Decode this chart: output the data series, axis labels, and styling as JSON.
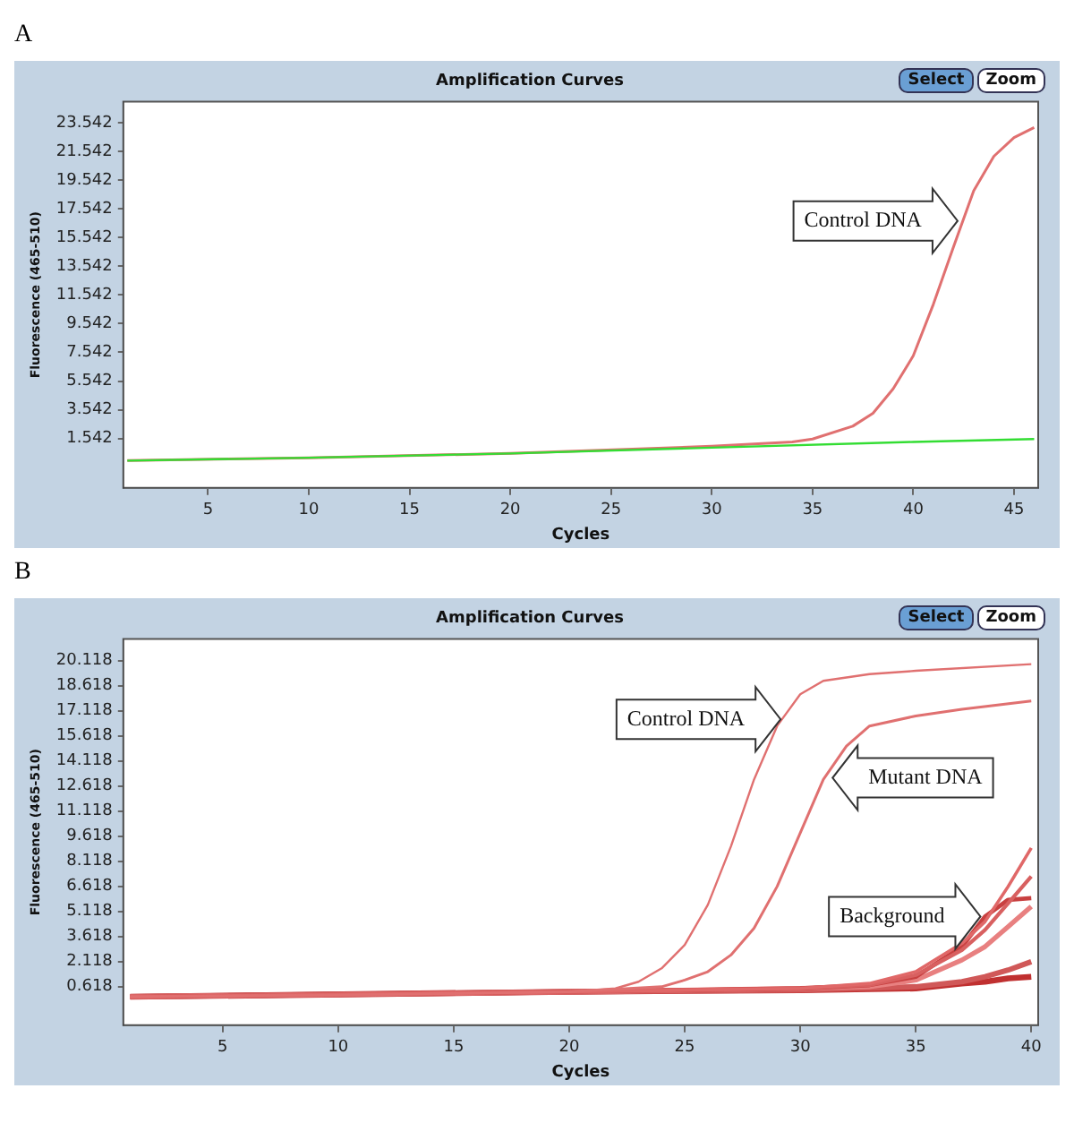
{
  "chart_data": [
    {
      "type": "line",
      "title": "Amplification Curves",
      "xlabel": "Cycles",
      "ylabel": "Fluorescence (465-510)",
      "xlim": [
        0.8,
        46.2
      ],
      "xticks": [
        5,
        10,
        15,
        20,
        25,
        30,
        35,
        40,
        45
      ],
      "ylim": [
        -1.9,
        25.0
      ],
      "yticks": [
        1.542,
        3.542,
        5.542,
        7.542,
        9.542,
        11.542,
        13.542,
        15.542,
        17.542,
        19.542,
        21.542,
        23.542
      ],
      "grid": false,
      "legend": false,
      "marker": "none",
      "line_style": "solid",
      "annotations": [
        "A",
        "Select",
        "Zoom",
        {
          "text": "Control DNA",
          "x": 42.2,
          "y": 16.7
        }
      ],
      "series": [
        {
          "color": "#33dd33",
          "x": [
            1,
            10,
            20,
            30,
            40,
            46
          ],
          "values": [
            0.0,
            0.2,
            0.5,
            0.9,
            1.3,
            1.5
          ]
        },
        {
          "color": "#e07070",
          "x": [
            1,
            10,
            20,
            30,
            34,
            35,
            37,
            38,
            39,
            40,
            41,
            42,
            43,
            44,
            45,
            46
          ],
          "values": [
            0.0,
            0.2,
            0.5,
            1.0,
            1.3,
            1.5,
            2.4,
            3.3,
            5.0,
            7.3,
            10.9,
            14.9,
            18.8,
            21.2,
            22.5,
            23.2
          ]
        }
      ]
    },
    {
      "type": "line",
      "title": "Amplification Curves",
      "xlabel": "Cycles",
      "ylabel": "Fluorescence (465-510)",
      "xlim": [
        0.7,
        40.3
      ],
      "xticks": [
        5,
        10,
        15,
        20,
        25,
        30,
        35,
        40
      ],
      "ylim": [
        -1.7,
        21.4
      ],
      "yticks": [
        0.618,
        2.118,
        3.618,
        5.118,
        6.618,
        8.118,
        9.618,
        11.118,
        12.618,
        14.118,
        15.618,
        17.118,
        18.618,
        20.118
      ],
      "grid": false,
      "legend": false,
      "marker": "none",
      "line_style": "solid",
      "annotations": [
        "B",
        "Select",
        "Zoom",
        {
          "text": "Control DNA",
          "x": 29.15,
          "y": 16.6
        },
        {
          "text": "Mutant DNA",
          "x": 31.4,
          "y": 13.1
        },
        {
          "text": "Background",
          "x": 37.8,
          "y": 4.8
        }
      ],
      "series": [
        {
          "color": "#e07070",
          "x": [
            1,
            10,
            20,
            22,
            23,
            24,
            25,
            26,
            27,
            28,
            29,
            30,
            31,
            33,
            35,
            40
          ],
          "values": [
            0.0,
            0.1,
            0.3,
            0.5,
            0.9,
            1.7,
            3.1,
            5.5,
            9.0,
            13.0,
            16.2,
            18.1,
            18.9,
            19.3,
            19.5,
            19.9
          ]
        },
        {
          "color": "#e07070",
          "x": [
            1,
            10,
            20,
            24,
            25,
            26,
            27,
            28,
            29,
            30,
            31,
            32,
            33,
            35,
            37,
            40
          ],
          "values": [
            0.0,
            0.1,
            0.3,
            0.6,
            1.0,
            1.5,
            2.5,
            4.1,
            6.6,
            9.8,
            13.0,
            15.0,
            16.2,
            16.8,
            17.2,
            17.7
          ]
        },
        {
          "color": "#e06868",
          "x": [
            1,
            20,
            30,
            33,
            35,
            37,
            38,
            39,
            40
          ],
          "values": [
            0.0,
            0.3,
            0.5,
            0.8,
            1.5,
            3.2,
            4.5,
            6.6,
            8.9
          ]
        },
        {
          "color": "#d86060",
          "x": [
            1,
            20,
            30,
            33,
            35,
            37,
            38,
            39,
            40
          ],
          "values": [
            0.0,
            0.3,
            0.5,
            0.7,
            1.3,
            2.8,
            4.0,
            5.6,
            7.2
          ]
        },
        {
          "color": "#c84040",
          "x": [
            1,
            20,
            30,
            33,
            35,
            37,
            38,
            39,
            40
          ],
          "values": [
            0.0,
            0.3,
            0.5,
            0.7,
            1.2,
            3.0,
            4.8,
            5.8,
            5.9
          ]
        },
        {
          "color": "#e88080",
          "x": [
            1,
            20,
            30,
            33,
            35,
            37,
            38,
            39,
            40
          ],
          "values": [
            0.0,
            0.3,
            0.5,
            0.6,
            1.0,
            2.2,
            3.0,
            4.2,
            5.4
          ]
        },
        {
          "color": "#d05858",
          "x": [
            1,
            20,
            30,
            35,
            37,
            38,
            39,
            40
          ],
          "values": [
            0.0,
            0.3,
            0.4,
            0.6,
            0.9,
            1.2,
            1.6,
            2.1
          ]
        },
        {
          "color": "#c03030",
          "x": [
            1,
            20,
            30,
            35,
            37,
            38,
            39,
            40
          ],
          "values": [
            0.0,
            0.3,
            0.4,
            0.5,
            0.8,
            0.9,
            1.1,
            1.2
          ]
        }
      ]
    }
  ]
}
